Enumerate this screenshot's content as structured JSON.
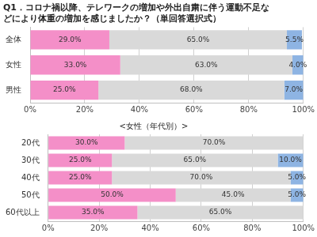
{
  "chart_data": [
    {
      "type": "bar",
      "title": [
        "Q1．コロナ禍以降、テレワークの増加や外出自粛に伴う運動不足な",
        "どにより体重の増加を感じましたか？（単回答選択式）"
      ],
      "orientation": "horizontal",
      "stacked": true,
      "data_labels": true,
      "grid": true,
      "categories": [
        "全体",
        "女性",
        "男性"
      ],
      "series": [
        {
          "color": "#f48fc8",
          "values": [
            29,
            33,
            25
          ],
          "value_labels": [
            "29.0%",
            "33.0%",
            "25.0%"
          ]
        },
        {
          "color": "#d9d9d9",
          "values": [
            65,
            63,
            68
          ],
          "value_labels": [
            "65.0%",
            "63.0%",
            "68.0%"
          ]
        },
        {
          "color": "#8eb4e3",
          "values": [
            5.5,
            4,
            7
          ],
          "value_labels": [
            "5.5%",
            "4.0%",
            "7.0%"
          ]
        }
      ],
      "xlim": [
        0,
        100
      ],
      "xticks": [
        {
          "value": 0,
          "label": "0%"
        },
        {
          "value": 20,
          "label": "20%"
        },
        {
          "value": 40,
          "label": "40%"
        },
        {
          "value": 60,
          "label": "60%"
        },
        {
          "value": 80,
          "label": "80%"
        },
        {
          "value": 100,
          "label": "100%"
        }
      ]
    },
    {
      "type": "bar",
      "title": "<女性（年代別）>",
      "orientation": "horizontal",
      "stacked": true,
      "data_labels": true,
      "grid": true,
      "categories": [
        "20代",
        "30代",
        "40代",
        "50代",
        "60代以上"
      ],
      "series": [
        {
          "color": "#f48fc8",
          "values": [
            30,
            25,
            25,
            50,
            35
          ],
          "value_labels": [
            "30.0%",
            "25.0%",
            "25.0%",
            "50.0%",
            "35.0%"
          ]
        },
        {
          "color": "#d9d9d9",
          "values": [
            70,
            65,
            70,
            45,
            65
          ],
          "value_labels": [
            "70.0%",
            "65.0%",
            "70.0%",
            "45.0%",
            "65.0%"
          ]
        },
        {
          "color": "#8eb4e3",
          "values": [
            null,
            10,
            5,
            5,
            null
          ],
          "value_labels": [
            null,
            "10.0%",
            "5.0%",
            "5.0%",
            null
          ]
        }
      ],
      "xlim": [
        0,
        100
      ],
      "xticks": [
        {
          "value": 0,
          "label": "0%"
        },
        {
          "value": 20,
          "label": "20%"
        },
        {
          "value": 40,
          "label": "40%"
        },
        {
          "value": 60,
          "label": "60%"
        },
        {
          "value": 80,
          "label": "80%"
        },
        {
          "value": 100,
          "label": "100%"
        }
      ]
    }
  ]
}
